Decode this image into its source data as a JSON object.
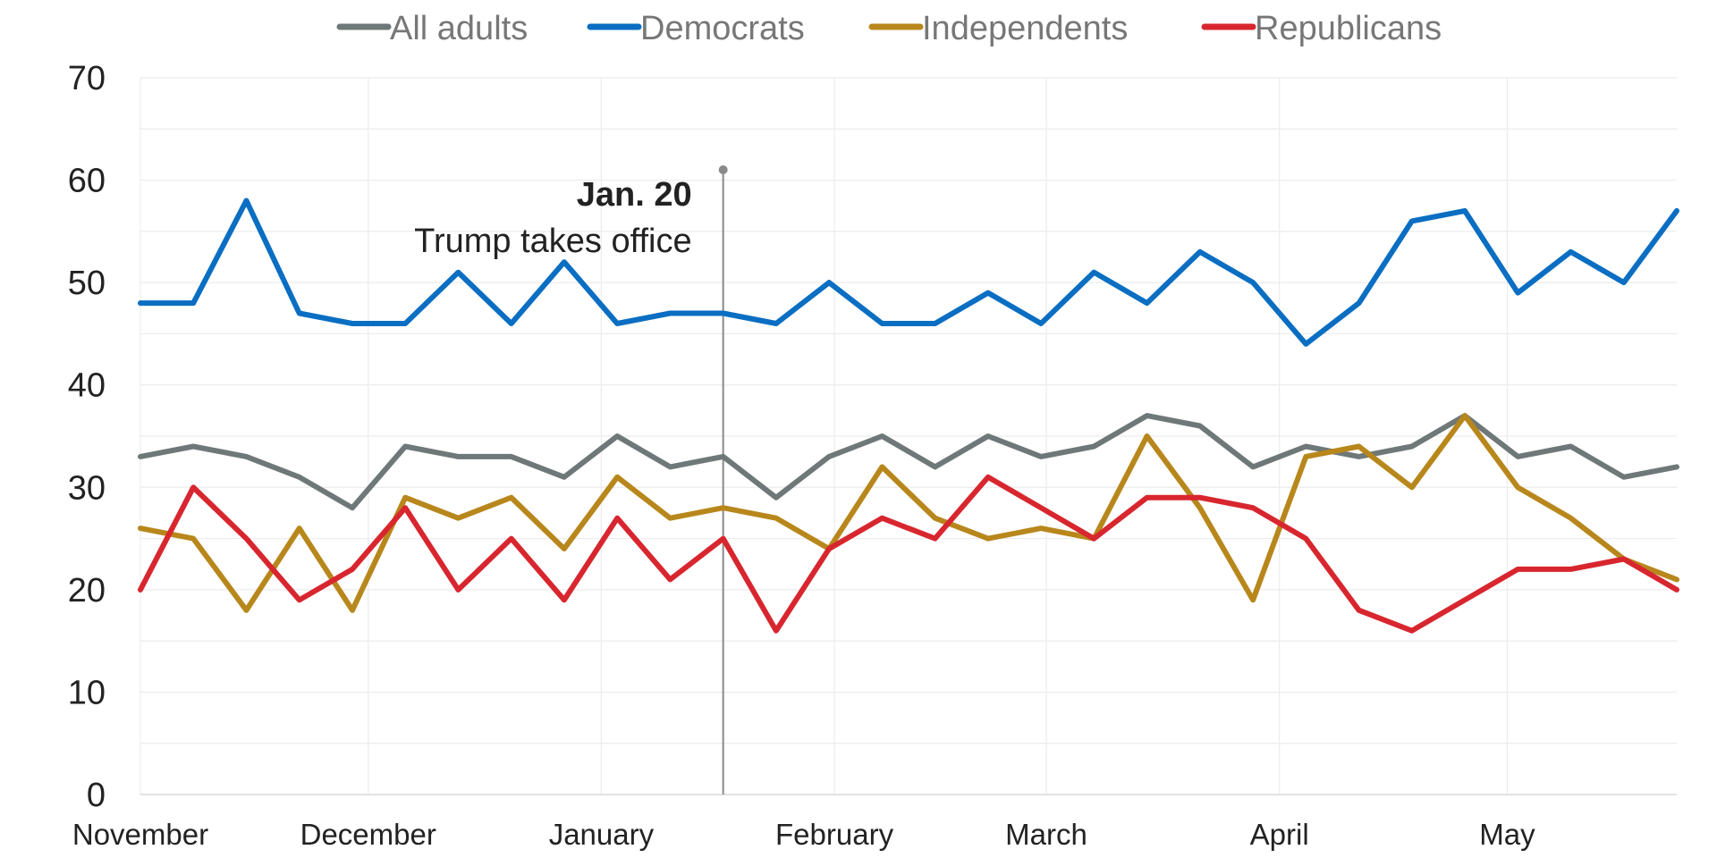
{
  "chart_data": {
    "type": "line",
    "ylim": [
      0,
      70
    ],
    "yticks": [
      0,
      10,
      20,
      30,
      40,
      50,
      60,
      70
    ],
    "grid": true,
    "legend_position": "top-center",
    "month_labels": [
      {
        "label": "November",
        "x": 0
      },
      {
        "label": "December",
        "x": 4.3
      },
      {
        "label": "January",
        "x": 8.7
      },
      {
        "label": "February",
        "x": 13.1
      },
      {
        "label": "March",
        "x": 17.1
      },
      {
        "label": "April",
        "x": 21.5
      },
      {
        "label": "May",
        "x": 25.8
      }
    ],
    "x": [
      0,
      1,
      2,
      3,
      4,
      5,
      6,
      7,
      8,
      9,
      10,
      11,
      12,
      13,
      14,
      15,
      16,
      17,
      18,
      19,
      20,
      21,
      22,
      23,
      24,
      25,
      26,
      27,
      28,
      29
    ],
    "series": [
      {
        "name": "All adults",
        "color": "#6f7878",
        "values": [
          33,
          34,
          33,
          31,
          28,
          34,
          33,
          33,
          31,
          35,
          32,
          33,
          29,
          33,
          35,
          32,
          35,
          33,
          34,
          37,
          36,
          32,
          34,
          33,
          34,
          37,
          33,
          34,
          31,
          32
        ]
      },
      {
        "name": "Democrats",
        "color": "#0a6ec2",
        "values": [
          48,
          48,
          58,
          47,
          46,
          46,
          51,
          46,
          52,
          46,
          47,
          47,
          46,
          50,
          46,
          46,
          49,
          46,
          51,
          48,
          53,
          50,
          44,
          48,
          56,
          57,
          49,
          53,
          50,
          57
        ]
      },
      {
        "name": "Independents",
        "color": "#b8871c",
        "values": [
          26,
          25,
          18,
          26,
          18,
          29,
          27,
          29,
          24,
          31,
          27,
          28,
          27,
          24,
          32,
          27,
          25,
          26,
          25,
          35,
          28,
          19,
          33,
          34,
          30,
          37,
          30,
          27,
          23,
          21
        ]
      },
      {
        "name": "Republicans",
        "color": "#d8262f",
        "values": [
          20,
          30,
          25,
          19,
          22,
          28,
          20,
          25,
          19,
          27,
          21,
          25,
          16,
          24,
          27,
          25,
          31,
          28,
          25,
          29,
          29,
          28,
          25,
          18,
          16,
          19,
          22,
          22,
          23,
          20
        ]
      }
    ],
    "annotation": {
      "x": 11,
      "title": "Jan. 20",
      "text": "Trump takes office"
    }
  }
}
